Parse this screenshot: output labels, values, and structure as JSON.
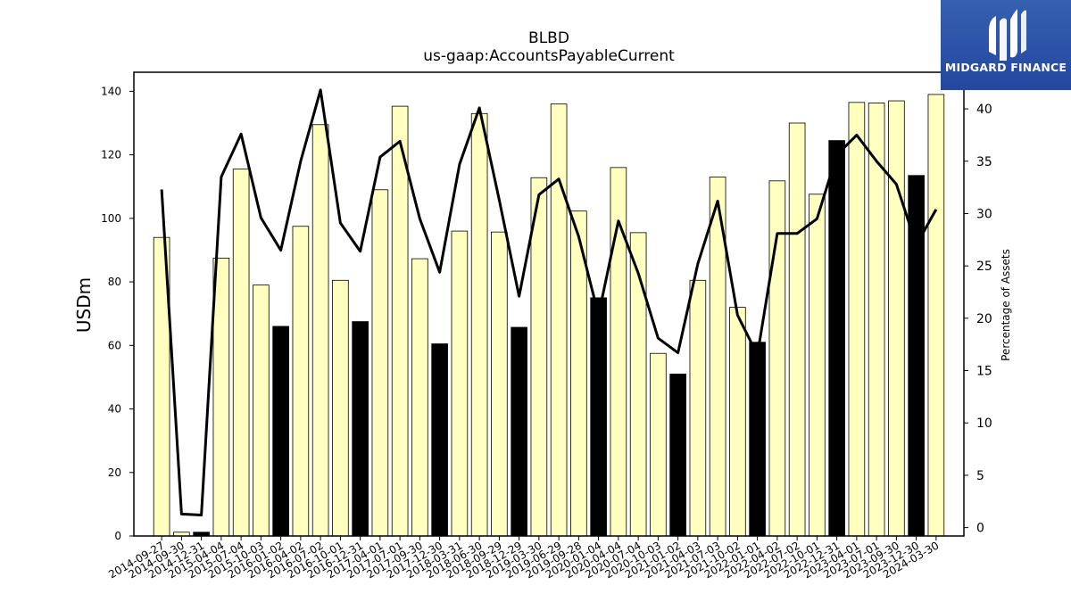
{
  "chart_data": {
    "type": "bar",
    "title": "BLBD",
    "subtitle": "us-gaap:AccountsPayableCurrent",
    "ylabel": "USDm",
    "y2label": "Percentage of Assets",
    "ylim": [
      0,
      146
    ],
    "y2lim": [
      -0.8,
      43.5
    ],
    "yticks": [
      0,
      20,
      40,
      60,
      80,
      100,
      120,
      140
    ],
    "y2ticks": [
      0,
      5,
      10,
      15,
      20,
      25,
      30,
      35,
      40
    ],
    "grid": false,
    "categories": [
      "2014-09-27",
      "2014-09-30",
      "2014-12-31",
      "2015-04-04",
      "2015-07-04",
      "2015-10-03",
      "2016-01-02",
      "2016-04-02",
      "2016-07-02",
      "2016-10-01",
      "2016-12-31",
      "2017-04-01",
      "2017-07-01",
      "2017-09-30",
      "2017-12-30",
      "2018-03-31",
      "2018-06-30",
      "2018-09-29",
      "2018-12-29",
      "2019-03-30",
      "2019-06-29",
      "2019-09-28",
      "2020-01-04",
      "2020-04-04",
      "2020-07-04",
      "2020-10-03",
      "2021-01-02",
      "2021-04-03",
      "2021-07-03",
      "2021-10-02",
      "2022-01-01",
      "2022-04-02",
      "2022-07-02",
      "2022-10-01",
      "2022-12-31",
      "2023-04-01",
      "2023-07-01",
      "2023-09-30",
      "2023-12-30",
      "2024-03-30"
    ],
    "series": [
      {
        "name": "AccountsPayableCurrent",
        "axis": "left",
        "values": [
          94,
          1.2,
          1.2,
          87.5,
          115.5,
          79,
          66,
          97.5,
          129.5,
          80.5,
          67.5,
          109,
          135.3,
          87.3,
          60.5,
          96,
          133,
          95.7,
          65.7,
          112.8,
          136,
          102.3,
          75,
          116,
          95.5,
          57.5,
          51,
          80.5,
          113,
          72,
          61,
          111.8,
          130,
          107.6,
          124.5,
          136.5,
          136.3,
          137,
          113.5,
          139
        ],
        "highlight": [
          false,
          false,
          true,
          false,
          false,
          false,
          true,
          false,
          false,
          false,
          true,
          false,
          false,
          false,
          true,
          false,
          false,
          false,
          true,
          false,
          false,
          false,
          true,
          false,
          false,
          false,
          true,
          false,
          false,
          false,
          true,
          false,
          false,
          false,
          true,
          false,
          false,
          false,
          true,
          false
        ]
      },
      {
        "name": "Percentage of Assets",
        "axis": "right",
        "type": "line",
        "values": [
          32.3,
          1.3,
          1.2,
          33.5,
          37.6,
          29.6,
          26.5,
          35,
          41.8,
          29.1,
          26.4,
          35.4,
          36.9,
          29.5,
          24.4,
          34.7,
          40.1,
          31.3,
          22.1,
          31.8,
          33.3,
          27.8,
          20.3,
          29.3,
          24.3,
          18.1,
          16.7,
          25.2,
          31.2,
          20.3,
          16.5,
          28.1,
          28.1,
          29.5,
          35.6,
          37.5,
          35,
          32.8,
          27,
          30.4
        ]
      }
    ],
    "colors": {
      "bar": "#ffffc0",
      "bar_highlight": "#000000",
      "line": "#000000"
    },
    "logo_text": "MIDGARD FINANCE"
  }
}
